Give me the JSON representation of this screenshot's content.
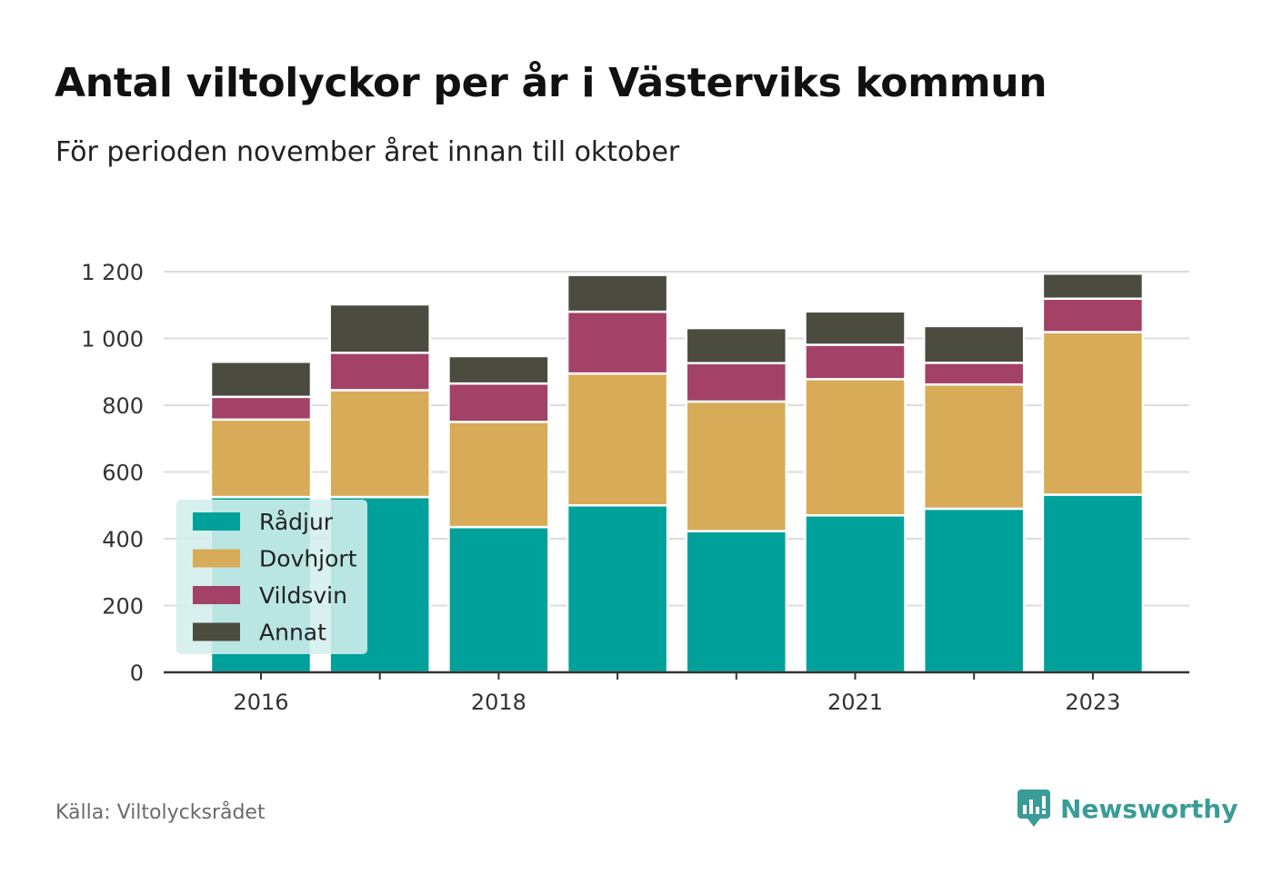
{
  "header": {
    "title": "Antal viltolyckor per år i Västerviks kommun",
    "subtitle": "För perioden november året innan till oktober"
  },
  "footer": {
    "source": "Källa: Viltolycksrådet",
    "brand": "Newsworthy",
    "brand_icon": "newsworthy-logo-icon"
  },
  "colors": {
    "radjur": "#00a19a",
    "dovhjort": "#d8ab59",
    "vildsvin": "#a34166",
    "annat": "#4b4b3f",
    "grid": "#dcdcdc",
    "axis": "#333333",
    "legend_bg": "#d3efec"
  },
  "chart_data": {
    "type": "bar",
    "stacked": true,
    "years": [
      2016,
      2017,
      2018,
      2019,
      2020,
      2021,
      2022,
      2023
    ],
    "x_tick_labels": [
      "2016",
      "2018",
      "2021",
      "2023"
    ],
    "y_ticks": [
      "0",
      "200",
      "400",
      "600",
      "800",
      "1 000",
      "1 200"
    ],
    "ylim": [
      0,
      1200
    ],
    "grid": true,
    "legend_position": "bottom-left",
    "series": [
      {
        "name": "Rådjur",
        "color": "#00a19a",
        "values": [
          525,
          525,
          435,
          500,
          423,
          470,
          490,
          532
        ]
      },
      {
        "name": "Dovhjort",
        "color": "#d8ab59",
        "values": [
          232,
          320,
          315,
          395,
          388,
          408,
          372,
          487
        ]
      },
      {
        "name": "Vildsvin",
        "color": "#a34166",
        "values": [
          68,
          112,
          115,
          185,
          115,
          103,
          65,
          100
        ]
      },
      {
        "name": "Annat",
        "color": "#4b4b3f",
        "values": [
          105,
          145,
          82,
          110,
          105,
          100,
          110,
          75
        ]
      }
    ]
  }
}
